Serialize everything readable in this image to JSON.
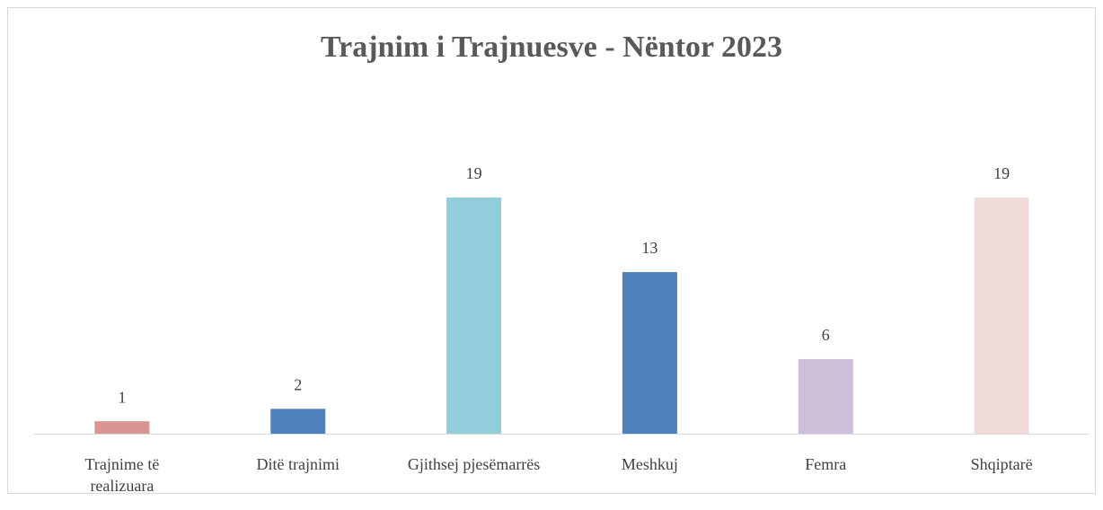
{
  "chart_data": {
    "type": "bar",
    "title": "Trajnim i Trajnuesve - Nëntor 2023",
    "categories": [
      "Trajnime të realizuara",
      "Ditë trajnimi",
      "Gjithsej pjesëmarrës",
      "Meshkuj",
      "Femra",
      "Shqiptarë"
    ],
    "values": [
      1,
      2,
      19,
      13,
      6,
      19
    ],
    "colors": [
      "#d99594",
      "#4f81bd",
      "#92cddc",
      "#4f81bd",
      "#ccc0da",
      "#f2dcdb"
    ]
  }
}
